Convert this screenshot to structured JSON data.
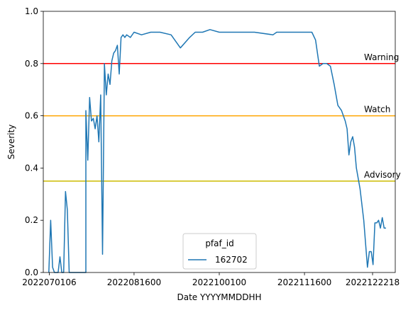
{
  "chart_data": {
    "type": "line",
    "xlabel": "Date YYYYMMDDHH",
    "ylabel": "Severity",
    "xlim": [
      2022062800,
      2023010400
    ],
    "ylim": [
      0,
      1.0
    ],
    "x_ticks": [
      {
        "value": 2022070106,
        "label": "2022070106"
      },
      {
        "value": 2022081600,
        "label": "2022081600"
      },
      {
        "value": 2022100100,
        "label": "2022100100"
      },
      {
        "value": 2022111600,
        "label": "2022111600"
      },
      {
        "value": 2022122218,
        "label": "2022122218"
      }
    ],
    "y_ticks": [
      {
        "value": 0.0,
        "label": "0.0"
      },
      {
        "value": 0.2,
        "label": "0.2"
      },
      {
        "value": 0.4,
        "label": "0.4"
      },
      {
        "value": 0.6,
        "label": "0.6"
      },
      {
        "value": 0.8,
        "label": "0.8"
      },
      {
        "value": 1.0,
        "label": "1.0"
      }
    ],
    "thresholds": [
      {
        "label": "Warning",
        "value": 0.8,
        "color": "#ff0000"
      },
      {
        "label": "Watch",
        "value": 0.6,
        "color": "#ffa500"
      },
      {
        "label": "Advisory",
        "value": 0.35,
        "color": "#ccbb00"
      }
    ],
    "legend": {
      "title": "pfaf_id",
      "position": "lower center"
    },
    "series": [
      {
        "name": "162702",
        "color": "#1f77b4",
        "x": [
          "2022-07-01",
          "2022-07-02",
          "2022-07-03",
          "2022-07-04",
          "2022-07-05",
          "2022-07-06",
          "2022-07-07",
          "2022-07-08",
          "2022-07-09",
          "2022-07-10",
          "2022-07-11",
          "2022-07-12",
          "2022-07-13",
          "2022-07-14",
          "2022-07-15",
          "2022-07-16",
          "2022-07-17",
          "2022-07-18",
          "2022-07-19",
          "2022-07-20",
          "2022-07-21",
          "2022-07-21",
          "2022-07-22",
          "2022-07-23",
          "2022-07-24",
          "2022-07-25",
          "2022-07-26",
          "2022-07-27",
          "2022-07-28",
          "2022-07-29",
          "2022-07-30",
          "2022-07-31",
          "2022-07-31",
          "2022-08-01",
          "2022-08-02",
          "2022-08-03",
          "2022-08-04",
          "2022-08-05",
          "2022-08-06",
          "2022-08-07",
          "2022-08-08",
          "2022-08-09",
          "2022-08-10",
          "2022-08-11",
          "2022-08-12",
          "2022-08-14",
          "2022-08-16",
          "2022-08-20",
          "2022-08-25",
          "2022-08-30",
          "2022-09-05",
          "2022-09-10",
          "2022-09-15",
          "2022-09-18",
          "2022-09-22",
          "2022-09-26",
          "2022-10-01",
          "2022-10-10",
          "2022-10-20",
          "2022-10-30",
          "2022-11-01",
          "2022-11-05",
          "2022-11-10",
          "2022-11-15",
          "2022-11-18",
          "2022-11-20",
          "2022-11-22",
          "2022-11-24",
          "2022-11-26",
          "2022-11-28",
          "2022-11-30",
          "2022-12-02",
          "2022-12-04",
          "2022-12-06",
          "2022-12-08",
          "2022-12-09",
          "2022-12-10",
          "2022-12-11",
          "2022-12-12",
          "2022-12-13",
          "2022-12-14",
          "2022-12-16",
          "2022-12-18",
          "2022-12-20",
          "2022-12-21",
          "2022-12-22",
          "2022-12-23",
          "2022-12-24",
          "2022-12-25",
          "2022-12-26",
          "2022-12-27",
          "2022-12-28",
          "2022-12-29",
          "2022-12-30"
        ],
        "y": [
          0.0,
          0.2,
          0.02,
          0.0,
          0.0,
          0.0,
          0.06,
          0.0,
          0.0,
          0.31,
          0.24,
          0.0,
          0.0,
          0.0,
          0.0,
          0.0,
          0.0,
          0.0,
          0.0,
          0.0,
          0.0,
          0.62,
          0.43,
          0.67,
          0.58,
          0.59,
          0.55,
          0.6,
          0.5,
          0.68,
          0.07,
          0.78,
          0.8,
          0.68,
          0.76,
          0.72,
          0.81,
          0.84,
          0.85,
          0.87,
          0.76,
          0.9,
          0.91,
          0.9,
          0.91,
          0.9,
          0.92,
          0.91,
          0.92,
          0.92,
          0.91,
          0.86,
          0.9,
          0.92,
          0.92,
          0.93,
          0.92,
          0.92,
          0.92,
          0.91,
          0.92,
          0.92,
          0.92,
          0.92,
          0.92,
          0.92,
          0.89,
          0.79,
          0.8,
          0.8,
          0.79,
          0.72,
          0.64,
          0.62,
          0.58,
          0.55,
          0.45,
          0.5,
          0.52,
          0.48,
          0.4,
          0.32,
          0.2,
          0.02,
          0.08,
          0.08,
          0.03,
          0.19,
          0.19,
          0.2,
          0.17,
          0.21,
          0.17,
          0.17
        ]
      }
    ]
  }
}
